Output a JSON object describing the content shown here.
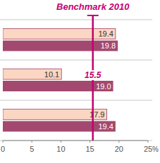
{
  "chart_data": {
    "type": "bar",
    "orientation": "horizontal",
    "categories": [
      null,
      null,
      null
    ],
    "series": [
      {
        "color": "#fbd6c2",
        "values": [
          19.4,
          10.1,
          17.9
        ],
        "value_labels": [
          "19.4",
          "10.1",
          "17.9"
        ]
      },
      {
        "color": "#a3496f",
        "values": [
          19.8,
          19.0,
          19.4
        ],
        "value_labels": [
          "19.8",
          "19.0",
          "19.4"
        ]
      }
    ],
    "xlim": [
      0,
      25
    ],
    "xticks": [
      0,
      5,
      10,
      15,
      20,
      25
    ],
    "x_label": "%",
    "data_labels": true,
    "annotations": [
      {
        "text": "Benchmark 2010",
        "x": 15.5,
        "color": "#c4006f"
      }
    ]
  }
}
